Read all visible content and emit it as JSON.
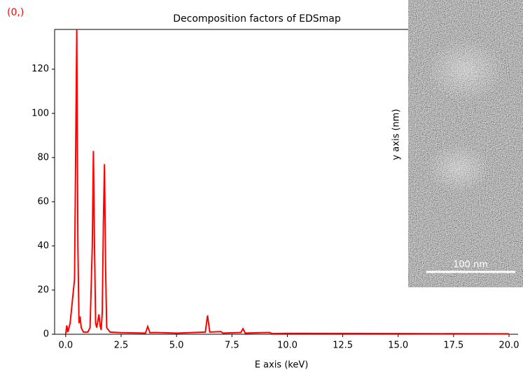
{
  "chart_data": {
    "type": "line",
    "corner_label": "(0,)",
    "title": "Decomposition factors of EDSmap",
    "x_label": "E axis (keV)",
    "x": [
      0,
      0.05,
      0.1,
      0.2,
      0.3,
      0.4,
      0.5,
      0.55,
      0.6,
      0.65,
      0.7,
      0.8,
      1.0,
      1.1,
      1.2,
      1.25,
      1.3,
      1.35,
      1.4,
      1.5,
      1.55,
      1.6,
      1.65,
      1.7,
      1.75,
      1.8,
      1.85,
      2.0,
      2.5,
      3.6,
      3.7,
      3.8,
      4.0,
      5.0,
      6.3,
      6.4,
      6.5,
      7.0,
      7.1,
      7.9,
      8.0,
      8.1,
      9.2,
      9.3,
      10.0,
      15.0,
      20.0
    ],
    "series": [
      {
        "color": "#ff0000",
        "values": [
          0,
          4,
          1,
          5,
          15,
          25,
          138,
          40,
          5,
          8,
          3,
          1,
          1,
          3,
          40,
          83,
          40,
          5,
          3,
          9,
          4,
          2,
          10,
          50,
          77,
          30,
          3,
          1,
          0.7,
          0.5,
          3.5,
          0.7,
          0.8,
          0.5,
          1,
          8.5,
          1,
          1.2,
          0.5,
          0.8,
          2.5,
          0.5,
          0.8,
          0.3,
          0.4,
          0.3,
          0.2
        ]
      }
    ],
    "xlim": [
      -0.5,
      20
    ],
    "ylim": [
      0,
      138
    ],
    "xticks": [
      {
        "value": 0,
        "label": "0.0"
      },
      2.5,
      {
        "value": 5,
        "label": "5.0"
      },
      7.5,
      {
        "value": 10,
        "label": "10.0"
      },
      12.5,
      {
        "value": 15,
        "label": "15.0"
      },
      17.5,
      {
        "value": 20,
        "label": "20.0"
      }
    ],
    "yticks": [
      0,
      20,
      40,
      60,
      80,
      100,
      120
    ]
  },
  "image_panel": {
    "y_label": "y axis (nm)",
    "scale_bar": "100 nm"
  }
}
